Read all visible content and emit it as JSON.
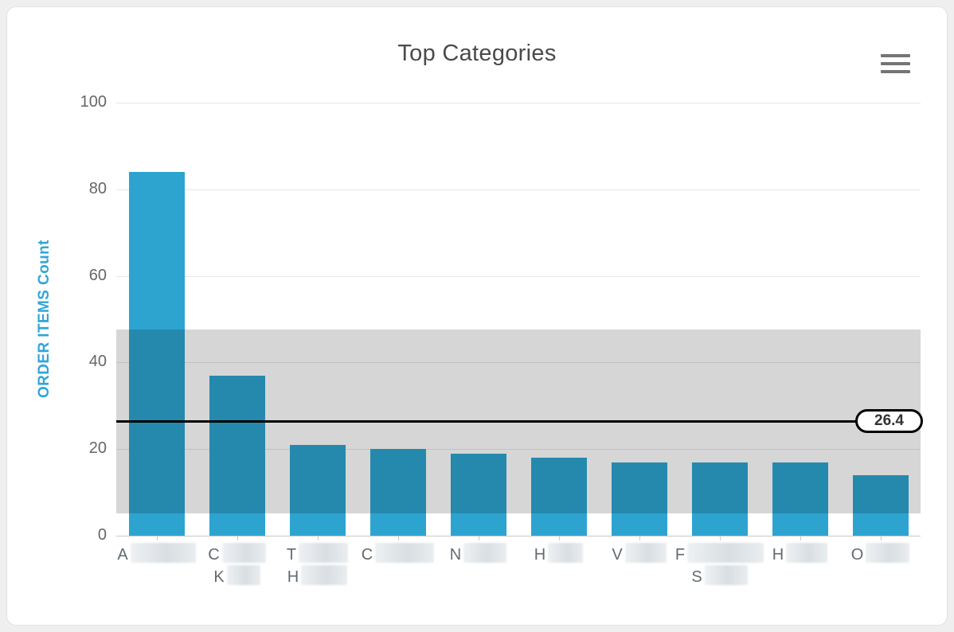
{
  "chart_data": {
    "type": "bar",
    "title": "Top Categories",
    "xlabel": "",
    "ylabel": "ORDER ITEMS Count",
    "ylim": [
      0,
      100
    ],
    "yticks": [
      0,
      20,
      40,
      60,
      80,
      100
    ],
    "grid": true,
    "categories_redacted": true,
    "categories": [
      {
        "initials": [
          "A"
        ]
      },
      {
        "initials": [
          "C",
          "K"
        ]
      },
      {
        "initials": [
          "T",
          "H"
        ]
      },
      {
        "initials": [
          "C"
        ]
      },
      {
        "initials": [
          "N"
        ]
      },
      {
        "initials": [
          "H"
        ]
      },
      {
        "initials": [
          "V"
        ]
      },
      {
        "initials": [
          "F",
          "S"
        ]
      },
      {
        "initials": [
          "H"
        ]
      },
      {
        "initials": [
          "O"
        ]
      }
    ],
    "values": [
      84,
      37,
      21,
      20,
      19,
      18,
      17,
      17,
      17,
      14
    ],
    "mean_line": {
      "value": 26.4,
      "label": "26.4"
    },
    "band": {
      "from": 5.2,
      "to": 47.6
    },
    "colors": {
      "bar": "#2da4d0",
      "y_axis_title": "#31a5d8",
      "band_overlay": "rgba(0,0,0,0.16)",
      "mean_line": "#000000",
      "gridline": "#e6e6e6",
      "axis_line": "#c8c8c8",
      "tick_label": "#666666",
      "title_text": "#4a4a4a"
    }
  }
}
